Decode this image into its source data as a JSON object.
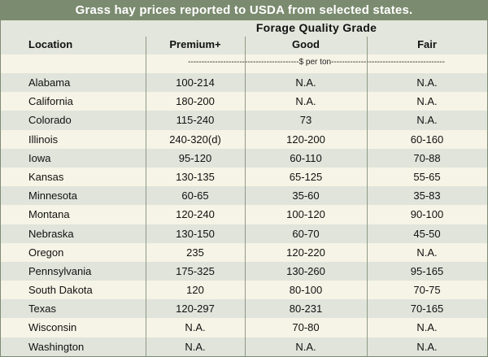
{
  "title": "Grass hay prices reported to USDA from selected states.",
  "header": {
    "location": "Location",
    "grade_group": "Forage Quality Grade",
    "premium": "Premium+",
    "good": "Good",
    "fair": "Fair"
  },
  "unit_label": "-----------------------------------------$ per ton------------------------------------------",
  "rows": [
    {
      "location": "Alabama",
      "premium": "100-214",
      "good": "N.A.",
      "fair": "N.A."
    },
    {
      "location": "California",
      "premium": "180-200",
      "good": "N.A.",
      "fair": "N.A."
    },
    {
      "location": "Colorado",
      "premium": "115-240",
      "good": "73",
      "fair": "N.A."
    },
    {
      "location": "Illinois",
      "premium": "240-320(d)",
      "good": "120-200",
      "fair": "60-160"
    },
    {
      "location": "Iowa",
      "premium": "95-120",
      "good": "60-110",
      "fair": "70-88"
    },
    {
      "location": "Kansas",
      "premium": "130-135",
      "good": "65-125",
      "fair": "55-65"
    },
    {
      "location": "Minnesota",
      "premium": "60-65",
      "good": "35-60",
      "fair": "35-83"
    },
    {
      "location": "Montana",
      "premium": "120-240",
      "good": "100-120",
      "fair": "90-100"
    },
    {
      "location": "Nebraska",
      "premium": "130-150",
      "good": "60-70",
      "fair": "45-50"
    },
    {
      "location": "Oregon",
      "premium": "235",
      "good": "120-220",
      "fair": "N.A."
    },
    {
      "location": "Pennsylvania",
      "premium": "175-325",
      "good": "130-260",
      "fair": "95-165"
    },
    {
      "location": "South Dakota",
      "premium": "120",
      "good": "80-100",
      "fair": "70-75"
    },
    {
      "location": "Texas",
      "premium": "120-297",
      "good": "80-231",
      "fair": "70-165"
    },
    {
      "location": "Wisconsin",
      "premium": "N.A.",
      "good": "70-80",
      "fair": "N.A."
    },
    {
      "location": "Washington",
      "premium": "N.A.",
      "good": "N.A.",
      "fair": "N.A."
    }
  ]
}
